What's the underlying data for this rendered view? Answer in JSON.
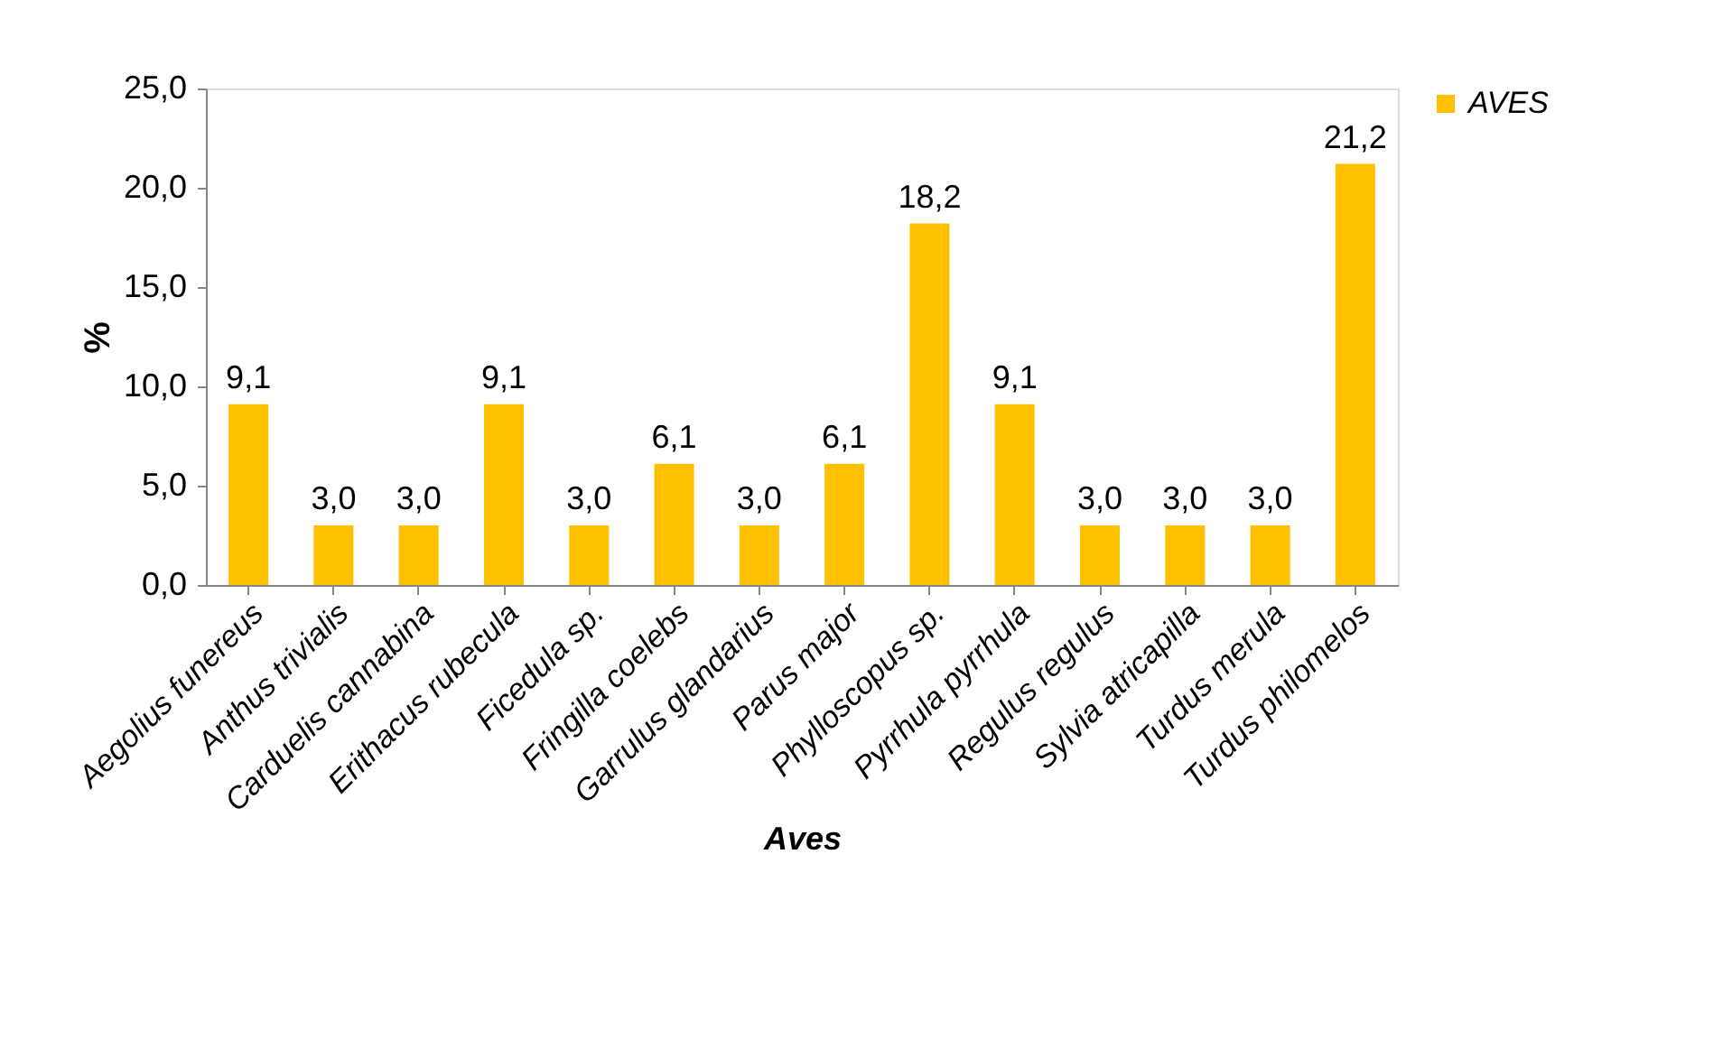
{
  "chart_data": {
    "type": "bar",
    "xlabel": "Aves",
    "ylabel": "%",
    "categories": [
      "Aegolius funereus",
      "Anthus trivialis",
      "Carduelis cannabina",
      "Erithacus rubecula",
      "Ficedula sp.",
      "Fringilla coelebs",
      "Garrulus glandarius",
      "Parus major",
      "Phylloscopus sp.",
      "Pyrrhula pyrrhula",
      "Regulus regulus",
      "Sylvia atricapilla",
      "Turdus merula",
      "Turdus philomelos"
    ],
    "series": [
      {
        "name": "AVES",
        "color": "#ffc000",
        "values": [
          9.1,
          3.0,
          3.0,
          9.1,
          3.0,
          6.1,
          3.0,
          6.1,
          18.2,
          9.1,
          3.0,
          3.0,
          3.0,
          21.2
        ],
        "value_labels": [
          "9,1",
          "3,0",
          "3,0",
          "9,1",
          "3,0",
          "6,1",
          "3,0",
          "6,1",
          "18,2",
          "9,1",
          "3,0",
          "3,0",
          "3,0",
          "21,2"
        ]
      }
    ],
    "ylim": [
      0,
      25
    ],
    "yticks": [
      {
        "value": 0,
        "label": "0,0"
      },
      {
        "value": 5,
        "label": "5,0"
      },
      {
        "value": 10,
        "label": "10,0"
      },
      {
        "value": 15,
        "label": "15,0"
      },
      {
        "value": 20,
        "label": "20,0"
      },
      {
        "value": 25,
        "label": "25,0"
      }
    ],
    "grid": false,
    "legend": "right"
  }
}
